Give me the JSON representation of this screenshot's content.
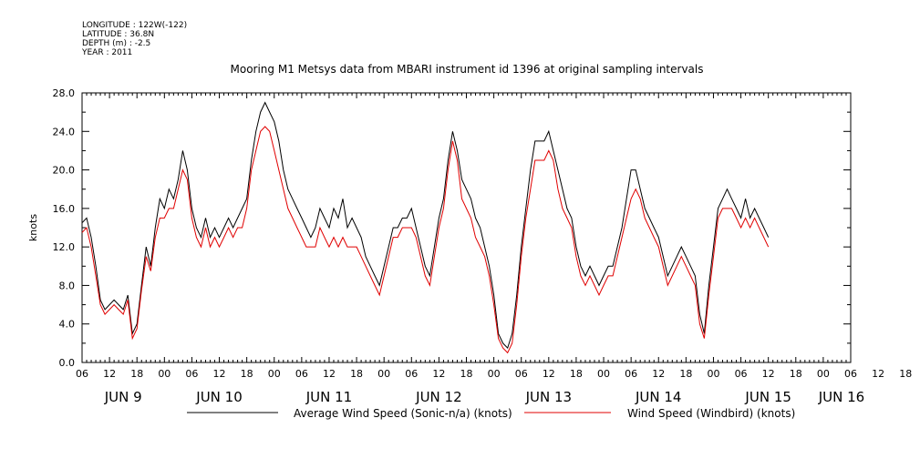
{
  "header": {
    "meta_lines": [
      "LONGITUDE : 122W(-122)",
      "LATITUDE : 36.8N",
      "DEPTH (m) : -2.5",
      "YEAR : 2011"
    ]
  },
  "chart_data": {
    "type": "line",
    "title": "Mooring M1 Metsys data from MBARI instrument id 1396 at original sampling intervals",
    "ylabel": "knots",
    "xlabel": "",
    "ylim": [
      0,
      28
    ],
    "yticks": [
      "0.0",
      "4.0",
      "8.0",
      "12.0",
      "16.0",
      "20.0",
      "24.0",
      "28.0"
    ],
    "xlim_hours": [
      0,
      168
    ],
    "x_hour_ticks": [
      "06",
      "12",
      "18",
      "00",
      "06",
      "12",
      "18",
      "00",
      "06",
      "12",
      "18",
      "00",
      "06",
      "12",
      "18",
      "00",
      "06",
      "12",
      "18",
      "00",
      "06",
      "12",
      "18",
      "00",
      "06",
      "12",
      "18",
      "00",
      "06",
      "12",
      "18",
      "00",
      "06"
    ],
    "day_labels": [
      {
        "label": "JUN  9",
        "at_hour": 9
      },
      {
        "label": "JUN 10",
        "at_hour": 30
      },
      {
        "label": "JUN 11",
        "at_hour": 54
      },
      {
        "label": "JUN 12",
        "at_hour": 78
      },
      {
        "label": "JUN 13",
        "at_hour": 102
      },
      {
        "label": "JUN 14",
        "at_hour": 126
      },
      {
        "label": "JUN 15",
        "at_hour": 150
      },
      {
        "label": "JUN 16",
        "at_hour": 166
      }
    ],
    "legend_placement": "bottom",
    "grid": false,
    "series": [
      {
        "name": "Average Wind Speed (Sonic-n/a) (knots)",
        "color": "#000000",
        "points": [
          [
            0,
            14.5
          ],
          [
            1,
            15
          ],
          [
            2,
            13
          ],
          [
            3,
            10
          ],
          [
            4,
            6.5
          ],
          [
            5,
            5.5
          ],
          [
            6,
            6
          ],
          [
            7,
            6.5
          ],
          [
            8,
            6
          ],
          [
            9,
            5.5
          ],
          [
            10,
            7
          ],
          [
            11,
            3
          ],
          [
            12,
            4
          ],
          [
            13,
            8
          ],
          [
            14,
            12
          ],
          [
            15,
            10
          ],
          [
            16,
            14
          ],
          [
            17,
            17
          ],
          [
            18,
            16
          ],
          [
            19,
            18
          ],
          [
            20,
            17
          ],
          [
            21,
            19
          ],
          [
            22,
            22
          ],
          [
            23,
            20
          ],
          [
            24,
            16
          ],
          [
            25,
            14
          ],
          [
            26,
            13
          ],
          [
            27,
            15
          ],
          [
            28,
            13
          ],
          [
            29,
            14
          ],
          [
            30,
            13
          ],
          [
            31,
            14
          ],
          [
            32,
            15
          ],
          [
            33,
            14
          ],
          [
            34,
            15
          ],
          [
            35,
            16
          ],
          [
            36,
            17
          ],
          [
            37,
            21
          ],
          [
            38,
            24
          ],
          [
            39,
            26
          ],
          [
            40,
            27
          ],
          [
            41,
            26
          ],
          [
            42,
            25
          ],
          [
            43,
            23
          ],
          [
            44,
            20
          ],
          [
            45,
            18
          ],
          [
            46,
            17
          ],
          [
            47,
            16
          ],
          [
            48,
            15
          ],
          [
            49,
            14
          ],
          [
            50,
            13
          ],
          [
            51,
            14
          ],
          [
            52,
            16
          ],
          [
            53,
            15
          ],
          [
            54,
            14
          ],
          [
            55,
            16
          ],
          [
            56,
            15
          ],
          [
            57,
            17
          ],
          [
            58,
            14
          ],
          [
            59,
            15
          ],
          [
            60,
            14
          ],
          [
            61,
            13
          ],
          [
            62,
            11
          ],
          [
            63,
            10
          ],
          [
            64,
            9
          ],
          [
            65,
            8
          ],
          [
            66,
            10
          ],
          [
            67,
            12
          ],
          [
            68,
            14
          ],
          [
            69,
            14
          ],
          [
            70,
            15
          ],
          [
            71,
            15
          ],
          [
            72,
            16
          ],
          [
            73,
            14
          ],
          [
            74,
            12
          ],
          [
            75,
            10
          ],
          [
            76,
            9
          ],
          [
            77,
            12
          ],
          [
            78,
            15
          ],
          [
            79,
            17
          ],
          [
            80,
            21
          ],
          [
            81,
            24
          ],
          [
            82,
            22
          ],
          [
            83,
            19
          ],
          [
            84,
            18
          ],
          [
            85,
            17
          ],
          [
            86,
            15
          ],
          [
            87,
            14
          ],
          [
            88,
            12
          ],
          [
            89,
            10
          ],
          [
            90,
            7
          ],
          [
            91,
            3
          ],
          [
            92,
            2
          ],
          [
            93,
            1.5
          ],
          [
            94,
            3
          ],
          [
            95,
            7
          ],
          [
            96,
            12
          ],
          [
            97,
            16
          ],
          [
            98,
            20
          ],
          [
            99,
            23
          ],
          [
            100,
            23
          ],
          [
            101,
            23
          ],
          [
            102,
            24
          ],
          [
            103,
            22
          ],
          [
            104,
            20
          ],
          [
            105,
            18
          ],
          [
            106,
            16
          ],
          [
            107,
            15
          ],
          [
            108,
            12
          ],
          [
            109,
            10
          ],
          [
            110,
            9
          ],
          [
            111,
            10
          ],
          [
            112,
            9
          ],
          [
            113,
            8
          ],
          [
            114,
            9
          ],
          [
            115,
            10
          ],
          [
            116,
            10
          ],
          [
            117,
            12
          ],
          [
            118,
            14
          ],
          [
            119,
            17
          ],
          [
            120,
            20
          ],
          [
            121,
            20
          ],
          [
            122,
            18
          ],
          [
            123,
            16
          ],
          [
            124,
            15
          ],
          [
            125,
            14
          ],
          [
            126,
            13
          ],
          [
            127,
            11
          ],
          [
            128,
            9
          ],
          [
            129,
            10
          ],
          [
            130,
            11
          ],
          [
            131,
            12
          ],
          [
            132,
            11
          ],
          [
            133,
            10
          ],
          [
            134,
            9
          ],
          [
            135,
            5
          ],
          [
            136,
            3
          ],
          [
            137,
            8
          ],
          [
            138,
            12
          ],
          [
            139,
            16
          ],
          [
            140,
            17
          ],
          [
            141,
            18
          ],
          [
            142,
            17
          ],
          [
            143,
            16
          ],
          [
            144,
            15
          ],
          [
            145,
            17
          ],
          [
            146,
            15
          ],
          [
            147,
            16
          ],
          [
            148,
            15
          ],
          [
            149,
            14
          ],
          [
            150,
            13
          ]
        ]
      },
      {
        "name": "Wind Speed (Windbird) (knots)",
        "color": "#e00000",
        "points": [
          [
            0,
            13.5
          ],
          [
            1,
            14
          ],
          [
            2,
            12
          ],
          [
            3,
            9
          ],
          [
            4,
            6
          ],
          [
            5,
            5
          ],
          [
            6,
            5.5
          ],
          [
            7,
            6
          ],
          [
            8,
            5.5
          ],
          [
            9,
            5
          ],
          [
            10,
            6.5
          ],
          [
            11,
            2.5
          ],
          [
            12,
            3.5
          ],
          [
            13,
            7.5
          ],
          [
            14,
            11
          ],
          [
            15,
            9.5
          ],
          [
            16,
            13
          ],
          [
            17,
            15
          ],
          [
            18,
            15
          ],
          [
            19,
            16
          ],
          [
            20,
            16
          ],
          [
            21,
            18
          ],
          [
            22,
            20
          ],
          [
            23,
            19
          ],
          [
            24,
            15
          ],
          [
            25,
            13
          ],
          [
            26,
            12
          ],
          [
            27,
            14
          ],
          [
            28,
            12
          ],
          [
            29,
            13
          ],
          [
            30,
            12
          ],
          [
            31,
            13
          ],
          [
            32,
            14
          ],
          [
            33,
            13
          ],
          [
            34,
            14
          ],
          [
            35,
            14
          ],
          [
            36,
            16
          ],
          [
            37,
            20
          ],
          [
            38,
            22
          ],
          [
            39,
            24
          ],
          [
            40,
            24.5
          ],
          [
            41,
            24
          ],
          [
            42,
            22
          ],
          [
            43,
            20
          ],
          [
            44,
            18
          ],
          [
            45,
            16
          ],
          [
            46,
            15
          ],
          [
            47,
            14
          ],
          [
            48,
            13
          ],
          [
            49,
            12
          ],
          [
            50,
            12
          ],
          [
            51,
            12
          ],
          [
            52,
            14
          ],
          [
            53,
            13
          ],
          [
            54,
            12
          ],
          [
            55,
            13
          ],
          [
            56,
            12
          ],
          [
            57,
            13
          ],
          [
            58,
            12
          ],
          [
            59,
            12
          ],
          [
            60,
            12
          ],
          [
            61,
            11
          ],
          [
            62,
            10
          ],
          [
            63,
            9
          ],
          [
            64,
            8
          ],
          [
            65,
            7
          ],
          [
            66,
            9
          ],
          [
            67,
            11
          ],
          [
            68,
            13
          ],
          [
            69,
            13
          ],
          [
            70,
            14
          ],
          [
            71,
            14
          ],
          [
            72,
            14
          ],
          [
            73,
            13
          ],
          [
            74,
            11
          ],
          [
            75,
            9
          ],
          [
            76,
            8
          ],
          [
            77,
            11
          ],
          [
            78,
            14
          ],
          [
            79,
            16
          ],
          [
            80,
            20
          ],
          [
            81,
            23
          ],
          [
            82,
            21
          ],
          [
            83,
            17
          ],
          [
            84,
            16
          ],
          [
            85,
            15
          ],
          [
            86,
            13
          ],
          [
            87,
            12
          ],
          [
            88,
            11
          ],
          [
            89,
            9
          ],
          [
            90,
            6
          ],
          [
            91,
            2.5
          ],
          [
            92,
            1.5
          ],
          [
            93,
            1
          ],
          [
            94,
            2
          ],
          [
            95,
            6
          ],
          [
            96,
            11
          ],
          [
            97,
            15
          ],
          [
            98,
            18
          ],
          [
            99,
            21
          ],
          [
            100,
            21
          ],
          [
            101,
            21
          ],
          [
            102,
            22
          ],
          [
            103,
            21
          ],
          [
            104,
            18
          ],
          [
            105,
            16
          ],
          [
            106,
            15
          ],
          [
            107,
            14
          ],
          [
            108,
            11
          ],
          [
            109,
            9
          ],
          [
            110,
            8
          ],
          [
            111,
            9
          ],
          [
            112,
            8
          ],
          [
            113,
            7
          ],
          [
            114,
            8
          ],
          [
            115,
            9
          ],
          [
            116,
            9
          ],
          [
            117,
            11
          ],
          [
            118,
            13
          ],
          [
            119,
            15
          ],
          [
            120,
            17
          ],
          [
            121,
            18
          ],
          [
            122,
            17
          ],
          [
            123,
            15
          ],
          [
            124,
            14
          ],
          [
            125,
            13
          ],
          [
            126,
            12
          ],
          [
            127,
            10
          ],
          [
            128,
            8
          ],
          [
            129,
            9
          ],
          [
            130,
            10
          ],
          [
            131,
            11
          ],
          [
            132,
            10
          ],
          [
            133,
            9
          ],
          [
            134,
            8
          ],
          [
            135,
            4
          ],
          [
            136,
            2.5
          ],
          [
            137,
            7
          ],
          [
            138,
            11
          ],
          [
            139,
            15
          ],
          [
            140,
            16
          ],
          [
            141,
            16
          ],
          [
            142,
            16
          ],
          [
            143,
            15
          ],
          [
            144,
            14
          ],
          [
            145,
            15
          ],
          [
            146,
            14
          ],
          [
            147,
            15
          ],
          [
            148,
            14
          ],
          [
            149,
            13
          ],
          [
            150,
            12
          ]
        ]
      }
    ]
  }
}
